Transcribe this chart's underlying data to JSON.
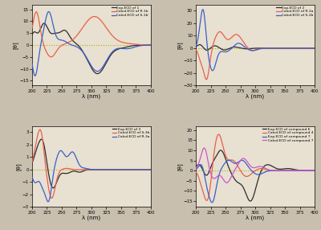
{
  "subplot1": {
    "legend": [
      "Exp.ECD of 1",
      "Calcd.ECD of R-1b",
      "Calcd.ECD of S-1b'"
    ],
    "legend_colors": [
      "#2d2d2d",
      "#e8604c",
      "#3a5fcd"
    ],
    "xlim": [
      200,
      400
    ],
    "ylim": [
      -17,
      17
    ],
    "xlabel": "λ (nm)",
    "ylabel": "[θ]"
  },
  "subplot2": {
    "legend": [
      "Exp.ECD of 2",
      "Calcd.ECD of R-2a",
      "Calcd.ECD of S-2b"
    ],
    "legend_colors": [
      "#2d2d2d",
      "#e8604c",
      "#3a5fcd"
    ],
    "xlim": [
      200,
      400
    ],
    "ylim": [
      -30,
      35
    ],
    "xlabel": "λ (nm)",
    "ylabel": "[θ]"
  },
  "subplot3": {
    "legend": [
      "Exp.ECD of 3",
      "Calcd.ECD of S-3b",
      "Calcd.ECD of R-3a"
    ],
    "legend_colors": [
      "#2d2d2d",
      "#e8604c",
      "#3a5fcd"
    ],
    "xlim": [
      200,
      400
    ],
    "ylim": [
      -3.0,
      3.5
    ],
    "xlabel": "λ (nm)",
    "ylabel": "[θ]"
  },
  "subplot4": {
    "legend": [
      "Exp.ECD of compound 6",
      "Calcd.ECD of compound 4",
      "Exp.ECD of compound 7",
      "Calcd.ECD of compound 7"
    ],
    "legend_colors": [
      "#2d2d2d",
      "#e8604c",
      "#3a5fcd",
      "#cc55cc"
    ],
    "xlim": [
      200,
      400
    ],
    "ylim": [
      -18,
      22
    ],
    "xlabel": "λ (nm)",
    "ylabel": "[θ]"
  },
  "bg_color": "#e8e0d0",
  "dotted_zero_color": "#b0b000",
  "fig_bg": "#c8bfaf"
}
